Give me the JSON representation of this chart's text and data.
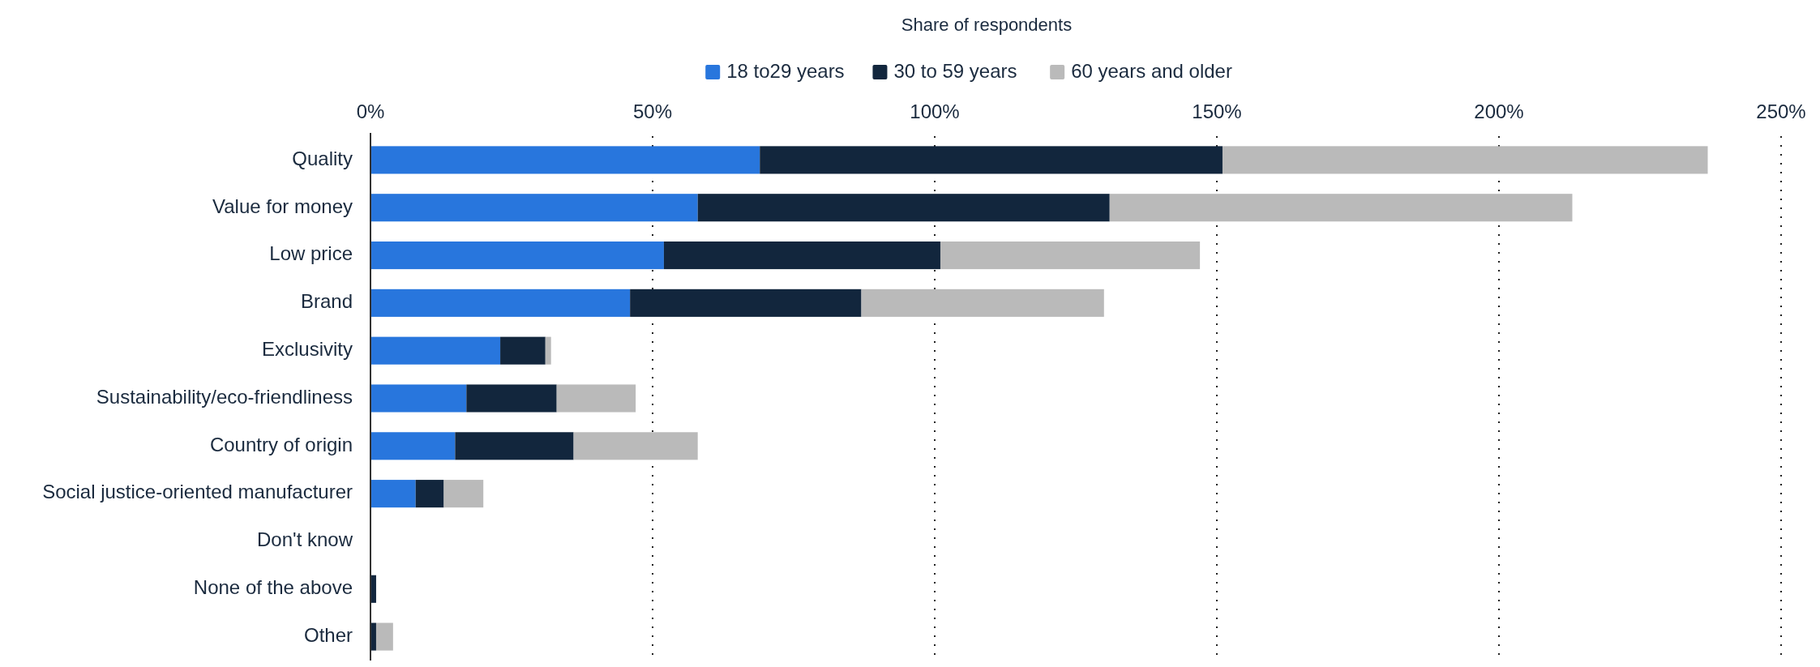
{
  "chart_data": {
    "type": "bar",
    "orientation": "horizontal",
    "stacked": true,
    "xlabel": "Share of respondents",
    "categories": [
      "Quality",
      "Value for money",
      "Low price",
      "Brand",
      "Exclusivity",
      "Sustainability/eco-friendliness",
      "Country of origin",
      "Social justice-oriented manufacturer",
      "Don't know",
      "None of the above",
      "Other"
    ],
    "series": [
      {
        "name": "18 to29 years",
        "color": "#2876dd",
        "values": [
          69,
          58,
          52,
          46,
          23,
          17,
          15,
          8,
          0,
          0,
          0
        ]
      },
      {
        "name": "30 to 59 years",
        "color": "#12263d",
        "values": [
          82,
          73,
          49,
          41,
          8,
          16,
          21,
          5,
          0,
          1,
          1
        ]
      },
      {
        "name": "60 years and older",
        "color": "#bababa",
        "values": [
          86,
          82,
          46,
          43,
          1,
          14,
          22,
          7,
          0,
          0,
          3
        ]
      }
    ],
    "xlim": [
      0,
      250
    ],
    "xticks": [
      {
        "value": 0,
        "label": "0%"
      },
      {
        "value": 50,
        "label": "50%"
      },
      {
        "value": 100,
        "label": "100%"
      },
      {
        "value": 150,
        "label": "150%"
      },
      {
        "value": 200,
        "label": "200%"
      },
      {
        "value": 250,
        "label": "250%"
      }
    ],
    "grid": "x",
    "legend": "top"
  }
}
